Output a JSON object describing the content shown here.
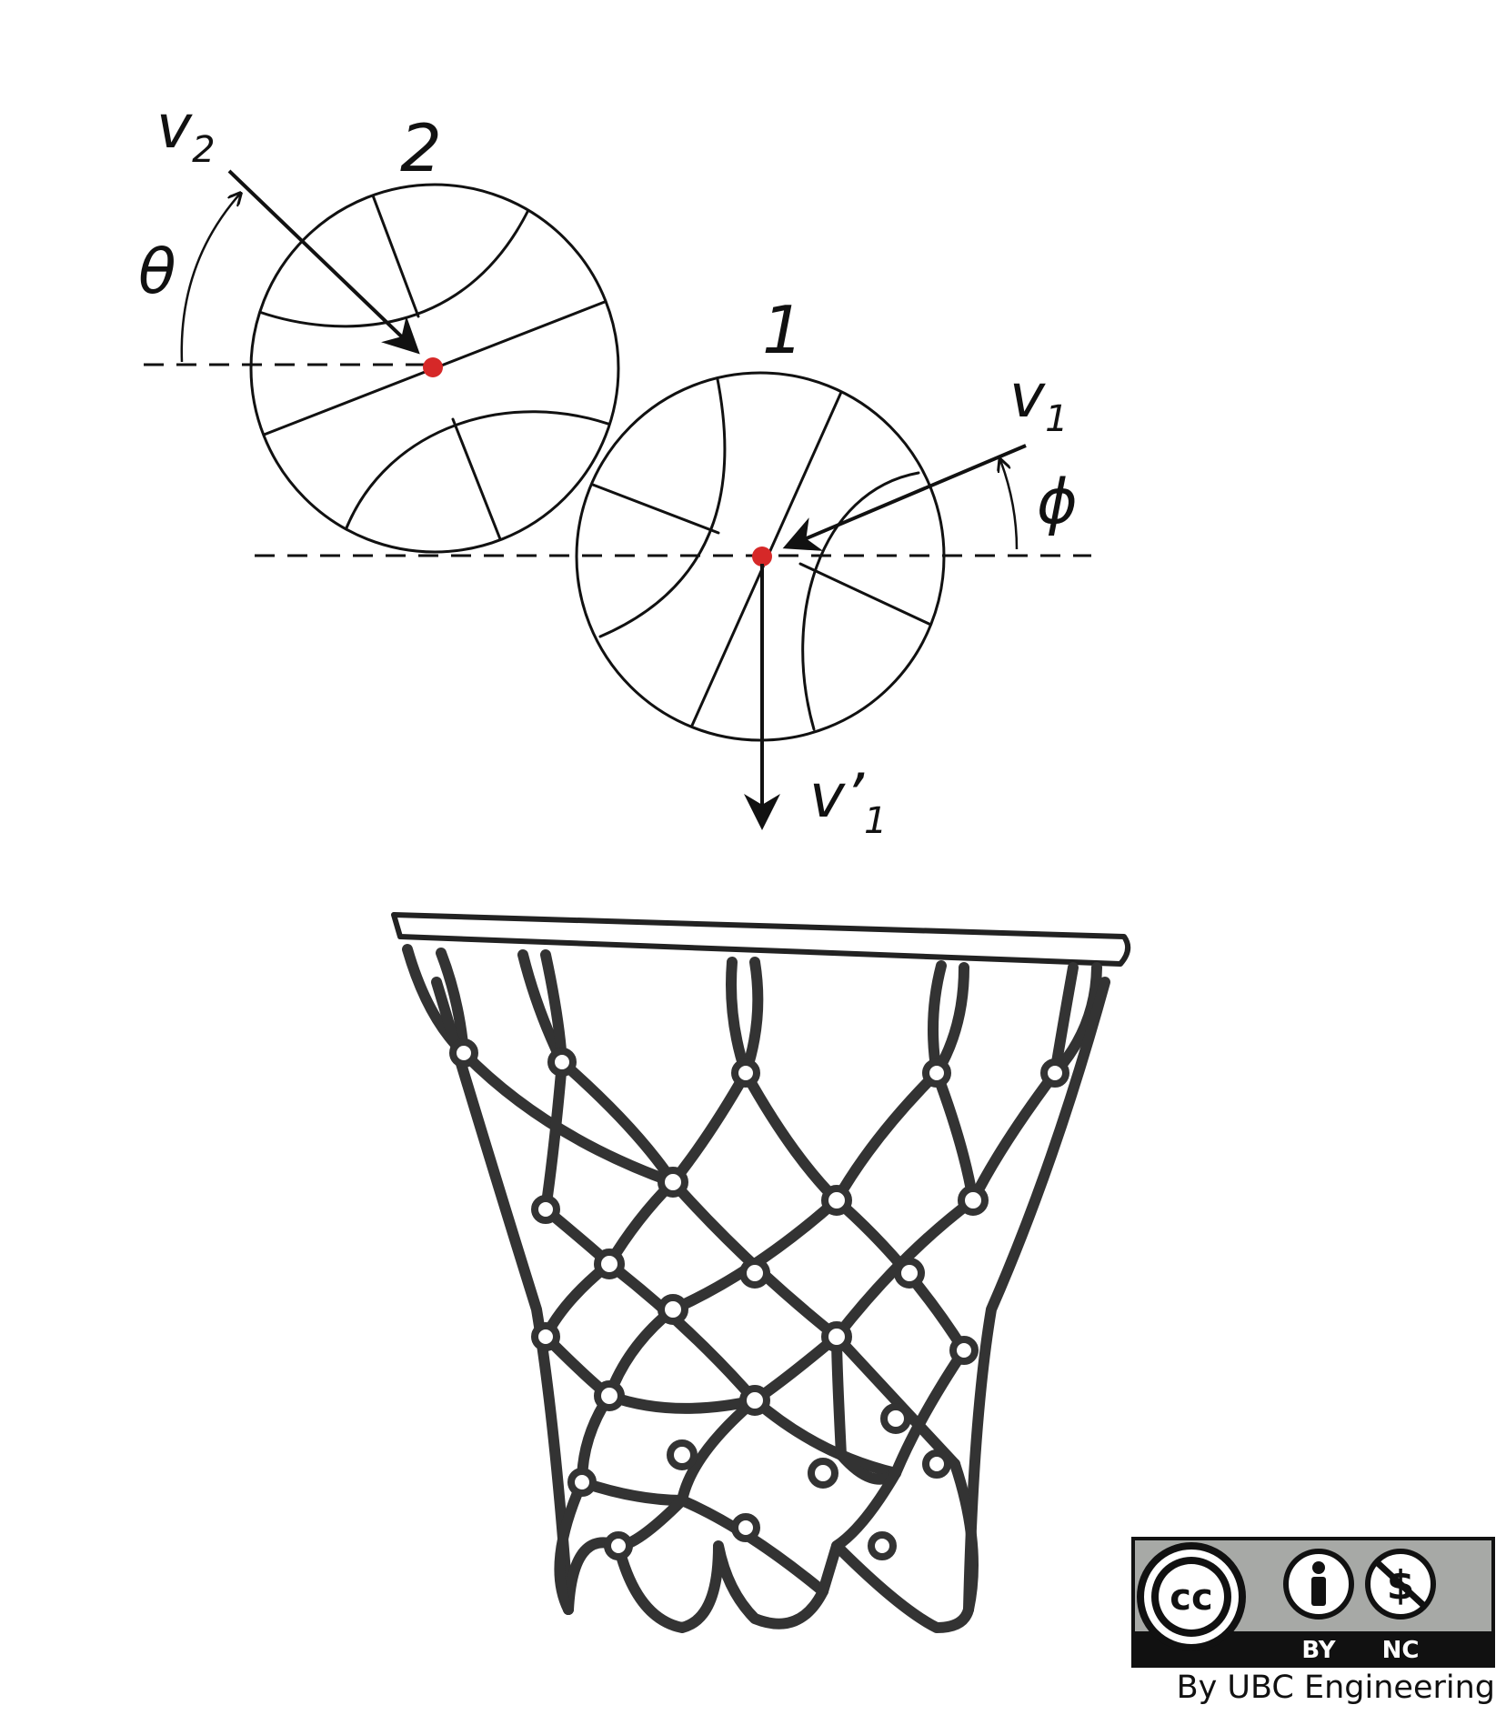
{
  "labels": {
    "ball_2": "2",
    "ball_1": "1",
    "v2_symbol": "v",
    "v2_subscript": "2",
    "v1_symbol": "v",
    "v1_subscript": "1",
    "v1_prime_symbol": "v’",
    "v1_prime_subscript": "1",
    "theta": "θ",
    "phi": "ϕ"
  },
  "license": {
    "cc_text": "cc",
    "by_label": "BY",
    "nc_label": "NC",
    "credit": "By UBC Engineering"
  },
  "colors": {
    "ink": "#111111",
    "center_point": "#d62828",
    "net": "#333333",
    "badge_grey": "#a7a9a6"
  }
}
